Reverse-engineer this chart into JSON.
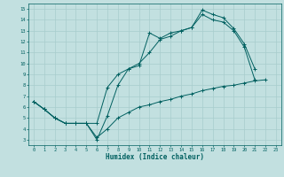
{
  "xlabel": "Humidex (Indice chaleur)",
  "bg_color": "#c2e0e0",
  "grid_color": "#a8cccc",
  "line_color": "#006060",
  "xlim": [
    -0.5,
    23.5
  ],
  "ylim": [
    2.5,
    15.5
  ],
  "xticks": [
    0,
    1,
    2,
    3,
    4,
    5,
    6,
    7,
    8,
    9,
    10,
    11,
    12,
    13,
    14,
    15,
    16,
    17,
    18,
    19,
    20,
    21,
    22,
    23
  ],
  "yticks": [
    3,
    4,
    5,
    6,
    7,
    8,
    9,
    10,
    11,
    12,
    13,
    14,
    15
  ],
  "line1_x": [
    0,
    1,
    2,
    3,
    4,
    5,
    6,
    7,
    8,
    9,
    10,
    11,
    12,
    13,
    14,
    15,
    16,
    17,
    18,
    19,
    20,
    21
  ],
  "line1_y": [
    6.5,
    5.8,
    5.0,
    4.5,
    4.5,
    4.5,
    3.0,
    5.2,
    8.0,
    9.5,
    9.8,
    12.8,
    12.3,
    12.8,
    13.0,
    13.3,
    14.9,
    14.5,
    14.2,
    13.2,
    11.8,
    9.5
  ],
  "line2_x": [
    0,
    1,
    2,
    3,
    4,
    5,
    6,
    7,
    8,
    9,
    10,
    11,
    12,
    13,
    14,
    15,
    16,
    17,
    18,
    19,
    20,
    21
  ],
  "line2_y": [
    6.5,
    5.8,
    5.0,
    4.5,
    4.5,
    4.5,
    4.5,
    7.8,
    9.0,
    9.5,
    10.0,
    11.0,
    12.2,
    12.5,
    13.0,
    13.3,
    14.5,
    14.0,
    13.8,
    13.0,
    11.5,
    8.5
  ],
  "line3_x": [
    0,
    1,
    2,
    3,
    4,
    5,
    6,
    7,
    8,
    9,
    10,
    11,
    12,
    13,
    14,
    15,
    16,
    17,
    18,
    19,
    20,
    21,
    22
  ],
  "line3_y": [
    6.5,
    5.8,
    5.0,
    4.5,
    4.5,
    4.5,
    3.2,
    4.0,
    5.0,
    5.5,
    6.0,
    6.2,
    6.5,
    6.7,
    7.0,
    7.2,
    7.5,
    7.7,
    7.9,
    8.0,
    8.2,
    8.4,
    8.5
  ]
}
